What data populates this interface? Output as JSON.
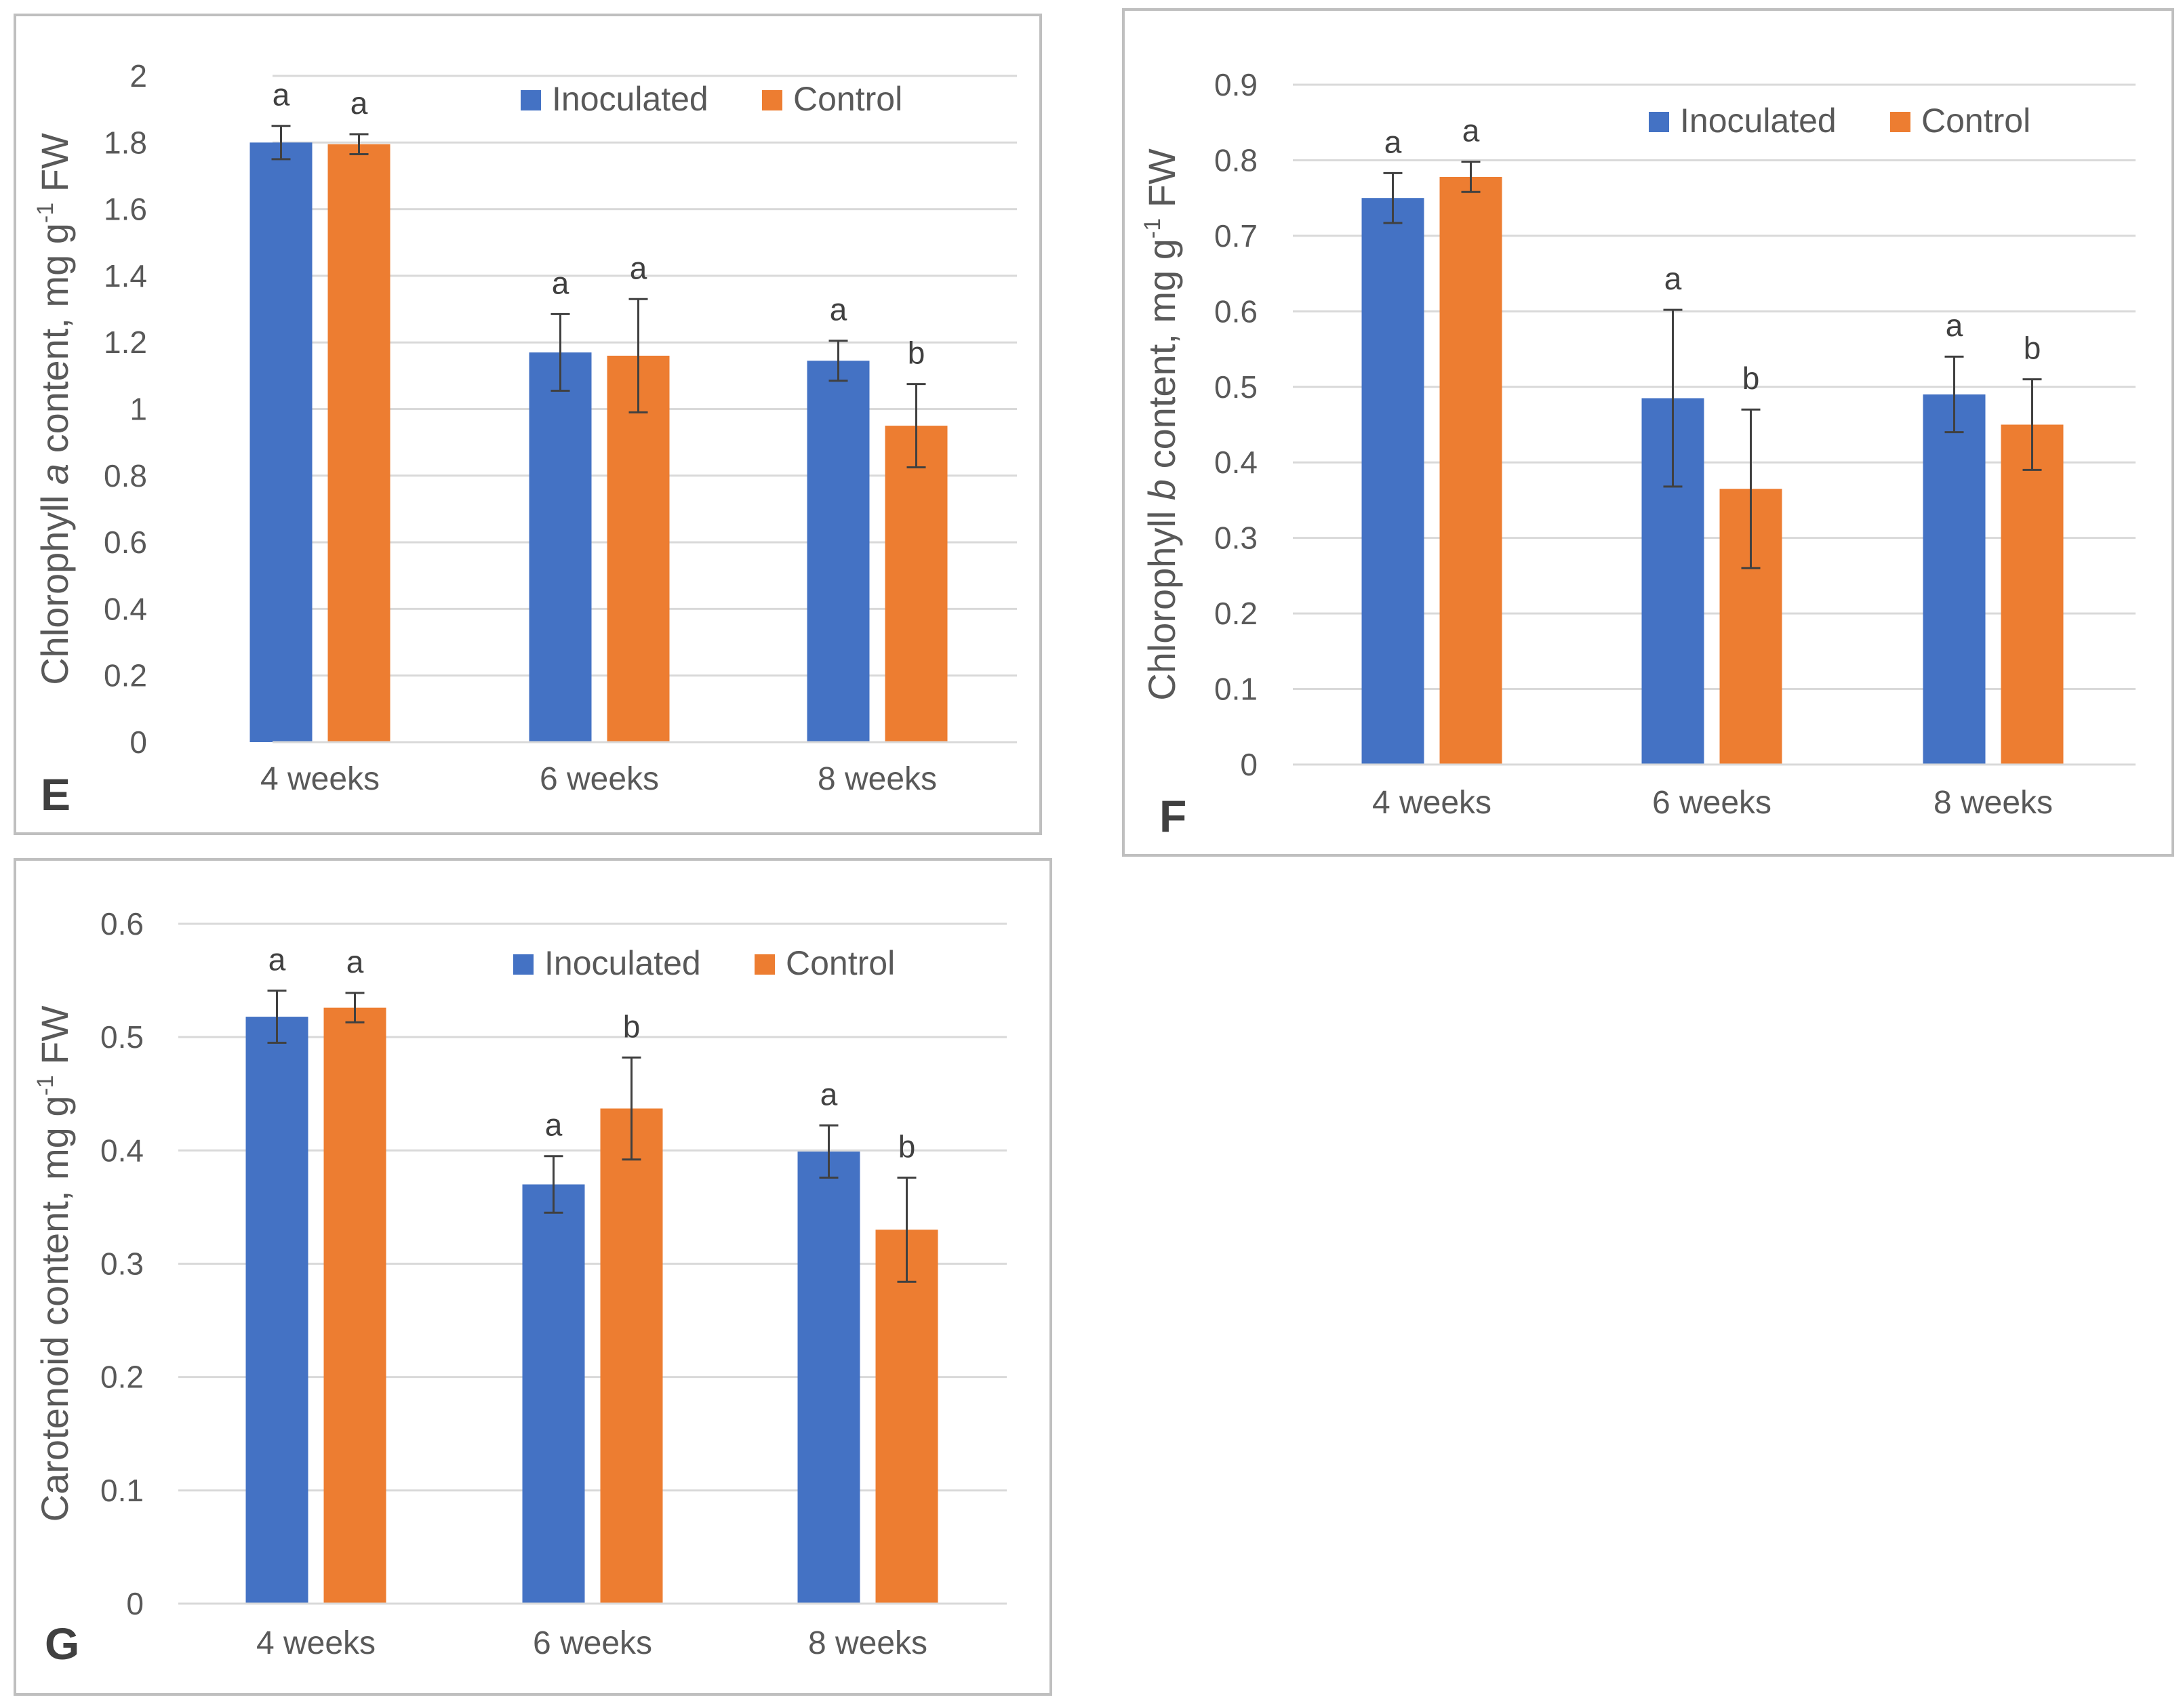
{
  "chart_data": [
    {
      "type": "bar",
      "panel": "E",
      "ylabel_pre": "Chlorophyll ",
      "ylabel_italic": "a",
      "ylabel_mid": " content, mg g",
      "ylabel_sup": "-1",
      "ylabel_post": " FW",
      "categories": [
        "4 weeks",
        "6 weeks",
        "8 weeks"
      ],
      "ylim": [
        0,
        2
      ],
      "yticks": [
        "0",
        "0.2",
        "0.4",
        "0.6",
        "0.8",
        "1",
        "1.2",
        "1.4",
        "1.6",
        "1.8",
        "2"
      ],
      "grid": true,
      "legend_position": "top-right",
      "series": [
        {
          "name": "Inoculated",
          "values": [
            1.8,
            1.17,
            1.145
          ],
          "errors": [
            0.05,
            0.115,
            0.06
          ],
          "letters": [
            "a",
            "a",
            "a"
          ]
        },
        {
          "name": "Control",
          "values": [
            1.795,
            1.16,
            0.95
          ],
          "errors": [
            0.03,
            0.17,
            0.125
          ],
          "letters": [
            "a",
            "a",
            "b"
          ]
        }
      ]
    },
    {
      "type": "bar",
      "panel": "F",
      "ylabel_pre": "Chlorophyll ",
      "ylabel_italic": "b",
      "ylabel_mid": " content, mg g",
      "ylabel_sup": "-1",
      "ylabel_post": " FW",
      "categories": [
        "4 weeks",
        "6 weeks",
        "8 weeks"
      ],
      "ylim": [
        0,
        0.9
      ],
      "yticks": [
        "0",
        "0.1",
        "0.2",
        "0.3",
        "0.4",
        "0.5",
        "0.6",
        "0.7",
        "0.8",
        "0.9"
      ],
      "grid": true,
      "legend_position": "top-right",
      "series": [
        {
          "name": "Inoculated",
          "values": [
            0.75,
            0.485,
            0.49
          ],
          "errors": [
            0.033,
            0.117,
            0.05
          ],
          "letters": [
            "a",
            "a",
            "a"
          ]
        },
        {
          "name": "Control",
          "values": [
            0.778,
            0.365,
            0.45
          ],
          "errors": [
            0.02,
            0.105,
            0.06
          ],
          "letters": [
            "a",
            "b",
            "b"
          ]
        }
      ]
    },
    {
      "type": "bar",
      "panel": "G",
      "ylabel_pre": "Carotenoid content, mg g",
      "ylabel_italic": "",
      "ylabel_mid": "",
      "ylabel_sup": "-1",
      "ylabel_post": " FW",
      "categories": [
        "4 weeks",
        "6 weeks",
        "8 weeks"
      ],
      "ylim": [
        0,
        0.6
      ],
      "yticks": [
        "0",
        "0.1",
        "0.2",
        "0.3",
        "0.4",
        "0.5",
        "0.6"
      ],
      "grid": true,
      "legend_position": "top-right",
      "series": [
        {
          "name": "Inoculated",
          "values": [
            0.518,
            0.37,
            0.399
          ],
          "errors": [
            0.023,
            0.025,
            0.023
          ],
          "letters": [
            "a",
            "a",
            "a"
          ]
        },
        {
          "name": "Control",
          "values": [
            0.526,
            0.437,
            0.33
          ],
          "errors": [
            0.013,
            0.045,
            0.046
          ],
          "letters": [
            "a",
            "b",
            "b"
          ]
        }
      ]
    }
  ],
  "colors": {
    "inoculated": "#4472C4",
    "control": "#ED7D31",
    "grid": "#D9D9D9",
    "frame": "#BFBFBF",
    "error": "#404040"
  }
}
